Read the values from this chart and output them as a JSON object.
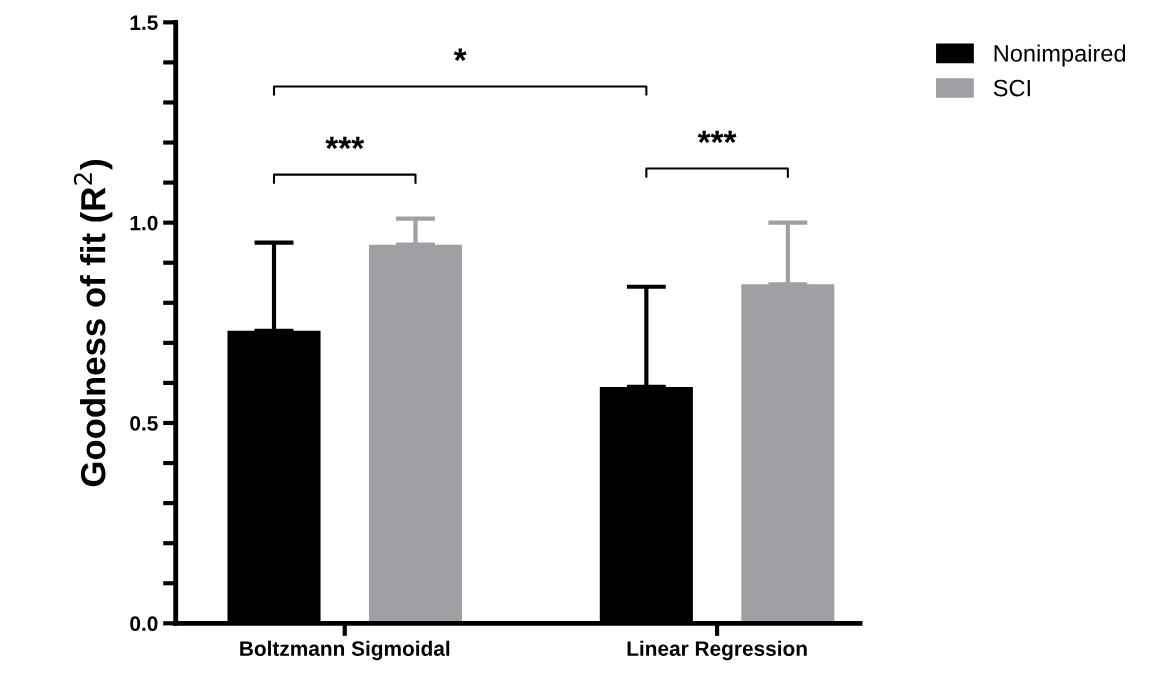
{
  "chart_data": {
    "type": "bar",
    "ylabel": "Goodness of fit (R$^{2}$)",
    "categories": [
      "Boltzmann Sigmoidal",
      "Linear Regression"
    ],
    "series": [
      {
        "name": "Nonimpaired",
        "color": "#000000",
        "values": [
          0.73,
          0.59
        ],
        "errors": [
          [
            0.73,
            0.95
          ],
          [
            0.59,
            0.84
          ]
        ]
      },
      {
        "name": "SCI",
        "color": "#a0a0a4",
        "values": [
          0.945,
          0.846
        ],
        "errors": [
          [
            0.945,
            1.01
          ],
          [
            0.846,
            1.0
          ]
        ]
      }
    ],
    "ylim": [
      0,
      1.5
    ],
    "yticks": [
      {
        "value": 0,
        "label": "0.0"
      },
      {
        "value": 0.1,
        "label": null
      },
      {
        "value": 0.2,
        "label": null
      },
      {
        "value": 0.3,
        "label": null
      },
      {
        "value": 0.4,
        "label": null
      },
      {
        "value": 0.5,
        "label": "0.5"
      },
      {
        "value": 0.6,
        "label": null
      },
      {
        "value": 0.7,
        "label": null
      },
      {
        "value": 0.8,
        "label": null
      },
      {
        "value": 0.9,
        "label": null
      },
      {
        "value": 1.0,
        "label": "1.0"
      },
      {
        "value": 1.1,
        "label": null
      },
      {
        "value": 1.2,
        "label": null
      },
      {
        "value": 1.3,
        "label": null
      },
      {
        "value": 1.4,
        "label": null
      },
      {
        "value": 1.5,
        "label": "1.5"
      }
    ],
    "annotations": [
      "***",
      "*",
      "***"
    ],
    "legend": "top right",
    "grid": false
  }
}
